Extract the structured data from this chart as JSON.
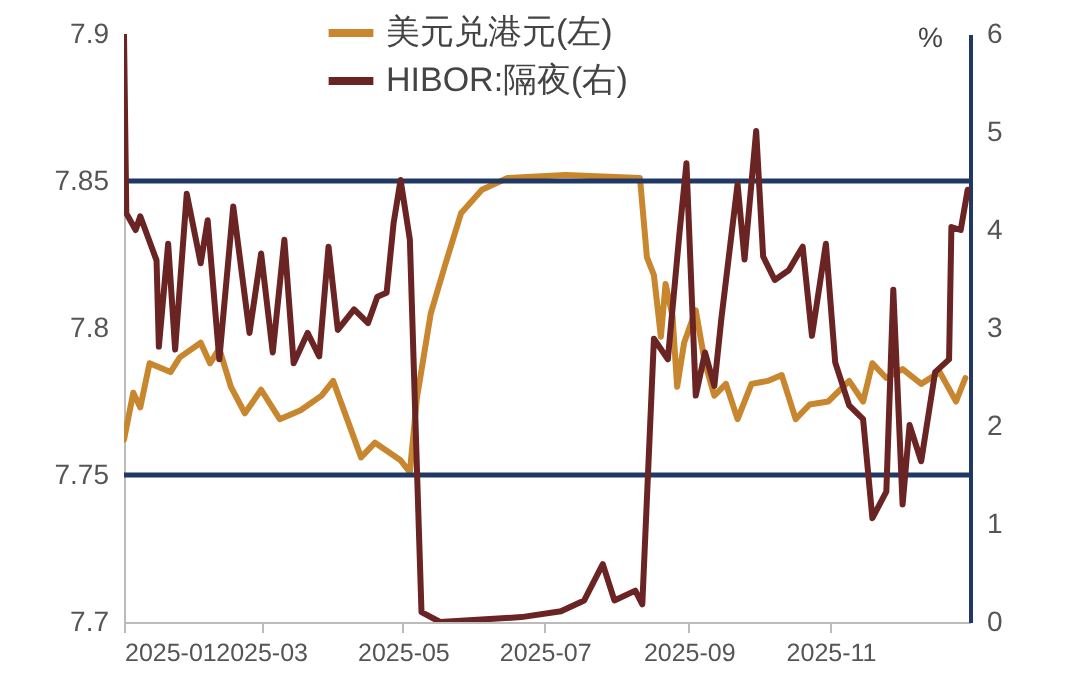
{
  "chart_data": {
    "type": "line",
    "legend": "top",
    "xlim": [
      "2025-01-01",
      "2025-12-31"
    ],
    "xticks": [
      "2025-01",
      "2025-03",
      "2025-05",
      "2025-07",
      "2025-09",
      "2025-11"
    ],
    "ylim": [
      7.7,
      7.9
    ],
    "yticks": [
      7.7,
      7.75,
      7.8,
      7.85,
      7.9
    ],
    "y2label": "%",
    "y2lim": [
      0,
      6
    ],
    "y2ticks": [
      0,
      1,
      2,
      3,
      4,
      5,
      6
    ],
    "ref_lines": [
      {
        "axis": "y",
        "value": 7.85,
        "color": "#1f3864"
      },
      {
        "axis": "y",
        "value": 7.75,
        "color": "#1f3864"
      }
    ],
    "series": [
      {
        "name": "美元兑港元(左)",
        "color": "#c8862f",
        "x": [
          "2025-01-01",
          "2025-01-05",
          "2025-01-08",
          "2025-01-12",
          "2025-01-21",
          "2025-01-25",
          "2025-02-03",
          "2025-02-07",
          "2025-02-11",
          "2025-02-16",
          "2025-02-22",
          "2025-03-01",
          "2025-03-09",
          "2025-03-18",
          "2025-03-27",
          "2025-04-01",
          "2025-04-07",
          "2025-04-13",
          "2025-04-19",
          "2025-04-30",
          "2025-05-04",
          "2025-05-07",
          "2025-05-13",
          "2025-05-19",
          "2025-05-26",
          "2025-06-04",
          "2025-06-15",
          "2025-07-10",
          "2025-08-11",
          "2025-08-14",
          "2025-08-17",
          "2025-08-20",
          "2025-08-22",
          "2025-08-25",
          "2025-08-27",
          "2025-08-30",
          "2025-09-04",
          "2025-09-08",
          "2025-09-12",
          "2025-09-17",
          "2025-09-22",
          "2025-09-28",
          "2025-10-05",
          "2025-10-11",
          "2025-10-17",
          "2025-10-23",
          "2025-10-31",
          "2025-11-09",
          "2025-11-15",
          "2025-11-19",
          "2025-11-25",
          "2025-12-02",
          "2025-12-10",
          "2025-12-18",
          "2025-12-25",
          "2025-12-29"
        ],
        "values": [
          7.762,
          7.778,
          7.773,
          7.788,
          7.785,
          7.79,
          7.795,
          7.788,
          7.793,
          7.78,
          7.771,
          7.779,
          7.769,
          7.772,
          7.777,
          7.782,
          7.769,
          7.756,
          7.761,
          7.755,
          7.751,
          7.776,
          7.805,
          7.821,
          7.839,
          7.847,
          7.851,
          7.852,
          7.851,
          7.824,
          7.818,
          7.797,
          7.815,
          7.804,
          7.78,
          7.795,
          7.806,
          7.788,
          7.777,
          7.781,
          7.769,
          7.781,
          7.782,
          7.784,
          7.769,
          7.774,
          7.775,
          7.782,
          7.775,
          7.788,
          7.783,
          7.786,
          7.781,
          7.785,
          7.775,
          7.783
        ]
      },
      {
        "name": "HIBOR:隔夜(右)",
        "color": "#6b2424",
        "axis": "y2",
        "x": [
          "2025-01-01",
          "2025-01-02",
          "2025-01-06",
          "2025-01-08",
          "2025-01-15",
          "2025-01-16",
          "2025-01-20",
          "2025-01-23",
          "2025-01-28",
          "2025-02-03",
          "2025-02-06",
          "2025-02-11",
          "2025-02-17",
          "2025-02-24",
          "2025-03-01",
          "2025-03-06",
          "2025-03-11",
          "2025-03-15",
          "2025-03-21",
          "2025-03-26",
          "2025-03-30",
          "2025-04-03",
          "2025-04-10",
          "2025-04-16",
          "2025-04-20",
          "2025-04-24",
          "2025-04-27",
          "2025-04-30",
          "2025-05-04",
          "2025-05-07",
          "2025-05-09",
          "2025-05-17",
          "2025-06-21",
          "2025-07-08",
          "2025-07-18",
          "2025-07-26",
          "2025-07-31",
          "2025-08-09",
          "2025-08-12",
          "2025-08-17",
          "2025-08-23",
          "2025-08-28",
          "2025-08-31",
          "2025-09-04",
          "2025-09-08",
          "2025-09-12",
          "2025-09-15",
          "2025-09-22",
          "2025-09-25",
          "2025-09-30",
          "2025-10-03",
          "2025-10-08",
          "2025-10-14",
          "2025-10-20",
          "2025-10-24",
          "2025-10-30",
          "2025-11-03",
          "2025-11-09",
          "2025-11-15",
          "2025-11-19",
          "2025-11-25",
          "2025-11-28",
          "2025-12-02",
          "2025-12-05",
          "2025-12-10",
          "2025-12-16",
          "2025-12-22",
          "2025-12-23",
          "2025-12-27",
          "2025-12-30"
        ],
        "values": [
          6.0,
          4.17,
          4.0,
          4.14,
          3.69,
          2.81,
          3.86,
          2.78,
          4.37,
          3.66,
          4.1,
          2.68,
          4.24,
          2.95,
          3.76,
          2.75,
          3.9,
          2.64,
          2.95,
          2.71,
          3.83,
          2.98,
          3.19,
          3.05,
          3.32,
          3.36,
          4.07,
          4.51,
          3.9,
          1.59,
          0.1,
          0.0,
          0.05,
          0.11,
          0.22,
          0.59,
          0.22,
          0.32,
          0.18,
          2.89,
          2.68,
          3.97,
          4.68,
          2.31,
          2.75,
          2.41,
          3.09,
          4.47,
          3.7,
          5.01,
          3.73,
          3.49,
          3.59,
          3.83,
          2.92,
          3.86,
          2.65,
          2.21,
          2.07,
          1.06,
          1.33,
          3.39,
          1.2,
          2.01,
          1.64,
          2.55,
          2.68,
          4.03,
          4.0,
          4.41
        ]
      }
    ]
  }
}
